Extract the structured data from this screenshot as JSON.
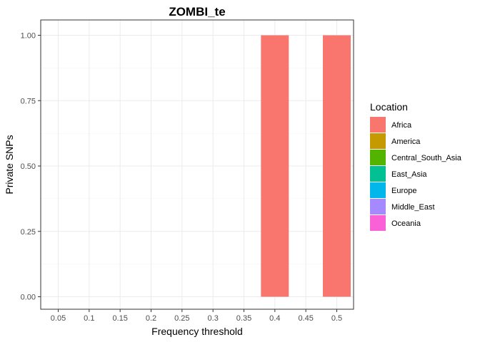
{
  "chart_data": {
    "type": "bar",
    "title": "ZOMBI_te",
    "xlabel": "Frequency threshold",
    "ylabel": "Private SNPs",
    "categories": [
      "0.05",
      "0.1",
      "0.15",
      "0.2",
      "0.25",
      "0.3",
      "0.35",
      "0.4",
      "0.45",
      "0.5"
    ],
    "yticks": [
      "0.00",
      "0.25",
      "0.50",
      "0.75",
      "1.00"
    ],
    "ylim": [
      0,
      1
    ],
    "grid": true,
    "legend_title": "Location",
    "legend_position": "right",
    "series": [
      {
        "name": "Africa",
        "color": "#F8766D",
        "values": [
          0,
          0,
          0,
          0,
          0,
          0,
          0,
          1,
          0,
          1
        ]
      },
      {
        "name": "America",
        "color": "#C49A00",
        "values": [
          0,
          0,
          0,
          0,
          0,
          0,
          0,
          0,
          0,
          0
        ]
      },
      {
        "name": "Central_South_Asia",
        "color": "#53B400",
        "values": [
          0,
          0,
          0,
          0,
          0,
          0,
          0,
          0,
          0,
          0
        ]
      },
      {
        "name": "East_Asia",
        "color": "#00C094",
        "values": [
          0,
          0,
          0,
          0,
          0,
          0,
          0,
          0,
          0,
          0
        ]
      },
      {
        "name": "Europe",
        "color": "#00B6EB",
        "values": [
          0,
          0,
          0,
          0,
          0,
          0,
          0,
          0,
          0,
          0
        ]
      },
      {
        "name": "Middle_East",
        "color": "#A58AFF",
        "values": [
          0,
          0,
          0,
          0,
          0,
          0,
          0,
          0,
          0,
          0
        ]
      },
      {
        "name": "Oceania",
        "color": "#FB61D7",
        "values": [
          0,
          0,
          0,
          0,
          0,
          0,
          0,
          0,
          0,
          0
        ]
      }
    ]
  }
}
